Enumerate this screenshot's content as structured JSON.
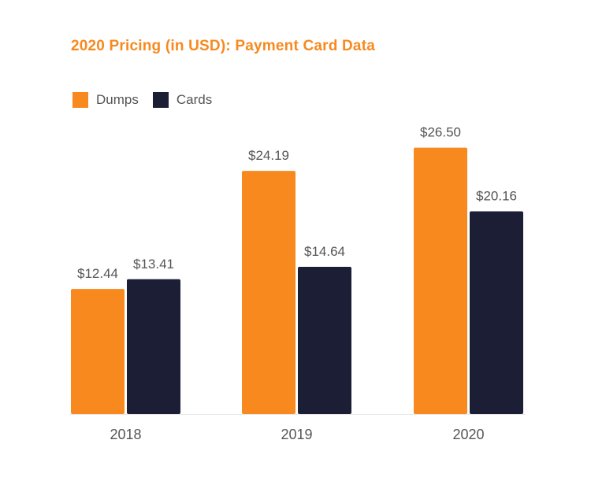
{
  "title": "2020 Pricing (in USD): Payment Card Data",
  "colors": {
    "Dumps": "#f7891f",
    "Cards": "#1c1e36",
    "text": "#555555",
    "title": "#f7891f"
  },
  "legend": [
    {
      "name": "Dumps",
      "color": "#f7891f"
    },
    {
      "name": "Cards",
      "color": "#1c1e36"
    }
  ],
  "chart_data": {
    "type": "bar",
    "title": "2020 Pricing (in USD): Payment Card Data",
    "categories": [
      "2018",
      "2019",
      "2020"
    ],
    "series": [
      {
        "name": "Dumps",
        "values": [
          12.44,
          24.19,
          26.5
        ],
        "labels": [
          "$12.44",
          "$24.19",
          "$26.50"
        ],
        "color": "#f7891f"
      },
      {
        "name": "Cards",
        "values": [
          13.41,
          14.64,
          20.16
        ],
        "labels": [
          "$13.41",
          "$14.64",
          "$20.16"
        ],
        "color": "#1c1e36"
      }
    ],
    "ylim": [
      0,
      30
    ],
    "legend_position": "top-left",
    "grid": false
  }
}
